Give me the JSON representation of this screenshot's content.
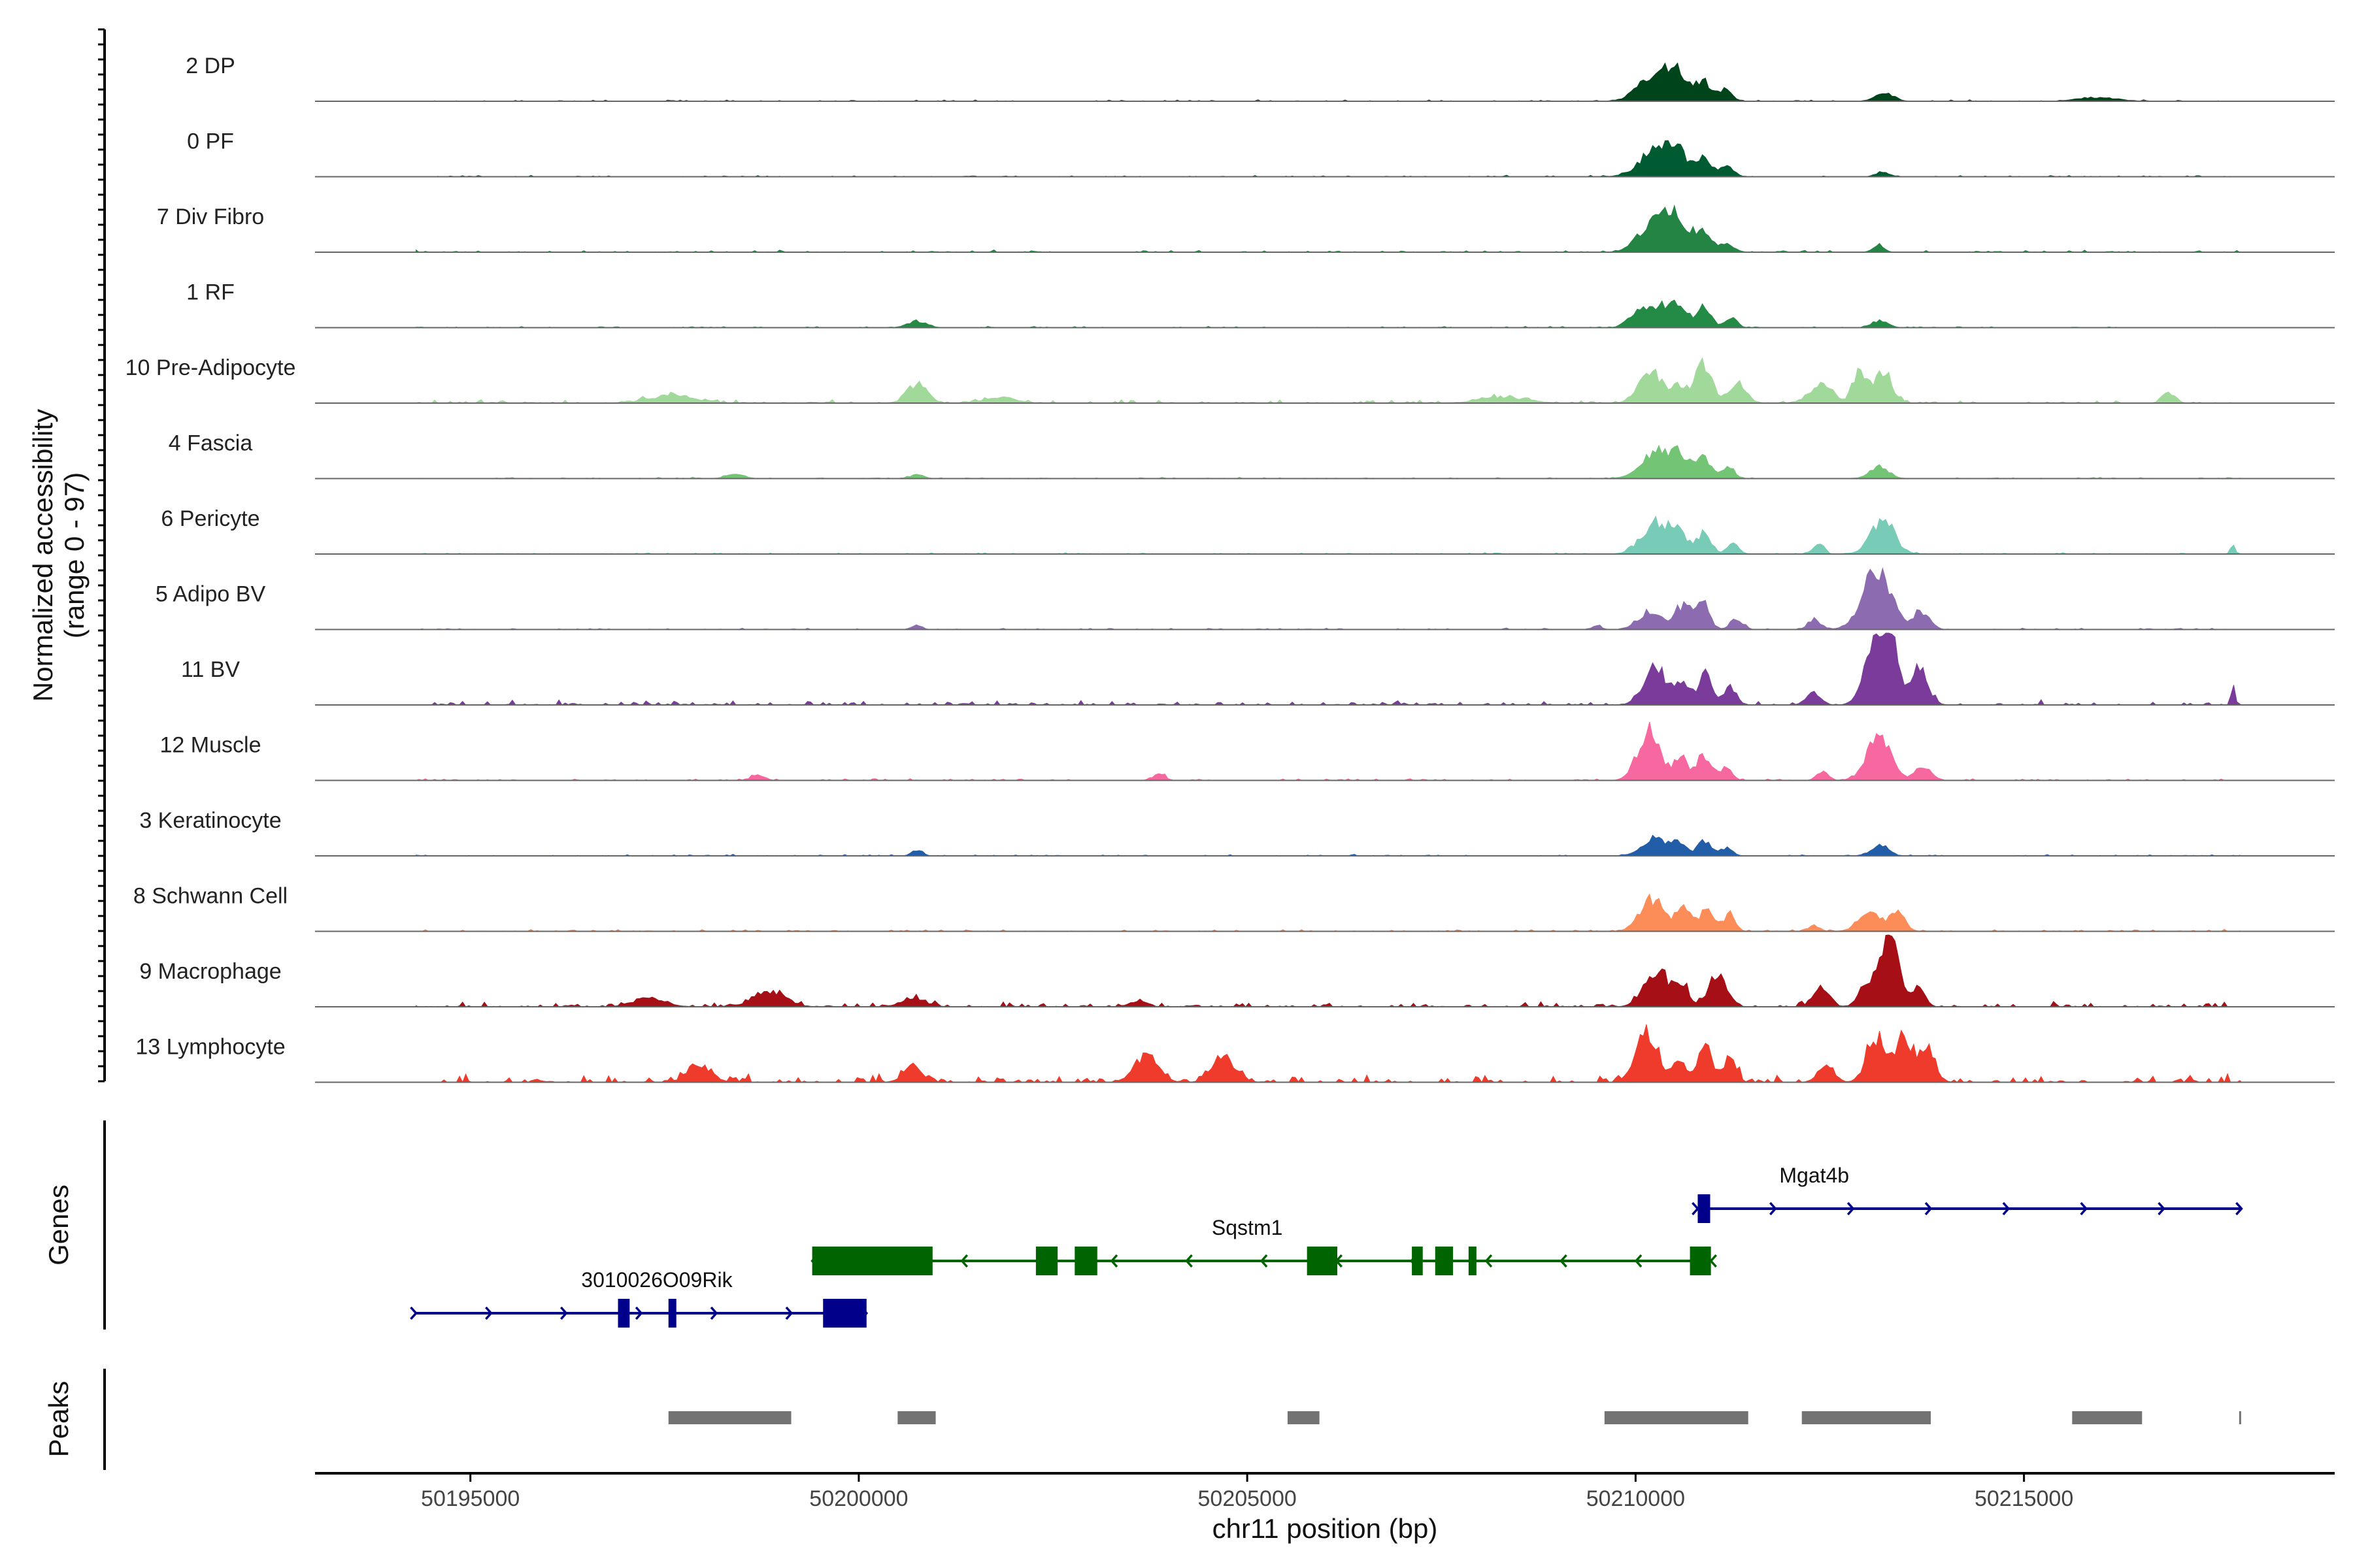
{
  "chart_data": {
    "type": "area",
    "title": "",
    "coverage": {
      "ylabel": "Normalized accessibility\n(range 0 - 97)",
      "ylim": [
        0,
        97
      ],
      "tracks": [
        {
          "name": "2 DP",
          "color": "#00441b",
          "peaks": [
            [
              50210300,
              220,
              40
            ],
            [
              50210550,
              120,
              20
            ],
            [
              50210870,
              100,
              27
            ],
            [
              50211150,
              90,
              14
            ],
            [
              50213200,
              120,
              11
            ],
            [
              50215950,
              250,
              5
            ]
          ],
          "noise": 2
        },
        {
          "name": "0 PF",
          "color": "#005a32",
          "peaks": [
            [
              50210300,
              220,
              38
            ],
            [
              50210550,
              110,
              20
            ],
            [
              50210880,
              90,
              27
            ],
            [
              50211180,
              80,
              15
            ],
            [
              50213170,
              80,
              6
            ]
          ],
          "noise": 2
        },
        {
          "name": "7 Div Fibro",
          "color": "#238443",
          "peaks": [
            [
              50210280,
              200,
              48
            ],
            [
              50210550,
              120,
              32
            ],
            [
              50210870,
              110,
              32
            ],
            [
              50211180,
              80,
              12
            ],
            [
              50213130,
              70,
              9
            ]
          ],
          "noise": 3
        },
        {
          "name": "1 RF",
          "color": "#238b45",
          "peaks": [
            [
              50200750,
              120,
              9
            ],
            [
              50209990,
              100,
              12
            ],
            [
              50210300,
              200,
              30
            ],
            [
              50210590,
              90,
              22
            ],
            [
              50210890,
              90,
              28
            ],
            [
              50211230,
              70,
              15
            ],
            [
              50213150,
              100,
              10
            ]
          ],
          "noise": 2
        },
        {
          "name": "10 Pre-Adipocyte",
          "color": "#a1d99b",
          "peaks": [
            [
              50200750,
              130,
              25
            ],
            [
              50210190,
              150,
              45
            ],
            [
              50210570,
              90,
              24
            ],
            [
              50210880,
              100,
              55
            ],
            [
              50211300,
              120,
              25
            ],
            [
              50212390,
              150,
              25
            ],
            [
              50212880,
              80,
              45
            ],
            [
              50213180,
              120,
              40
            ],
            [
              50216870,
              80,
              15
            ],
            [
              50201800,
              200,
              8
            ],
            [
              50197600,
              300,
              10
            ],
            [
              50208300,
              300,
              8
            ]
          ],
          "noise": 5
        },
        {
          "name": "4 Fascia",
          "color": "#74c476",
          "peaks": [
            [
              50210290,
              200,
              36
            ],
            [
              50210570,
              100,
              22
            ],
            [
              50210870,
              110,
              28
            ],
            [
              50211190,
              80,
              15
            ],
            [
              50213140,
              120,
              16
            ],
            [
              50200750,
              80,
              6
            ],
            [
              50198400,
              120,
              5
            ]
          ],
          "noise": 2
        },
        {
          "name": "6 Pericyte",
          "color": "#78cbb7",
          "peaks": [
            [
              50210270,
              180,
              45
            ],
            [
              50210580,
              90,
              24
            ],
            [
              50210880,
              90,
              28
            ],
            [
              50211250,
              70,
              15
            ],
            [
              50212350,
              70,
              14
            ],
            [
              50213180,
              150,
              46
            ],
            [
              50217690,
              30,
              12
            ]
          ],
          "noise": 2
        },
        {
          "name": "5 Adipo BV",
          "color": "#8c6bb1",
          "peaks": [
            [
              50210190,
              150,
              24
            ],
            [
              50210600,
              100,
              30
            ],
            [
              50210850,
              90,
              38
            ],
            [
              50211300,
              80,
              15
            ],
            [
              50212300,
              80,
              14
            ],
            [
              50213100,
              180,
              80
            ],
            [
              50213680,
              100,
              24
            ],
            [
              50200750,
              60,
              6
            ],
            [
              50209500,
              60,
              5
            ]
          ],
          "noise": 2
        },
        {
          "name": "11 BV",
          "color": "#7a3b9b",
          "peaks": [
            [
              50210250,
              150,
              50
            ],
            [
              50210600,
              90,
              30
            ],
            [
              50210900,
              90,
              44
            ],
            [
              50211220,
              80,
              22
            ],
            [
              50212290,
              90,
              18
            ],
            [
              50213090,
              140,
              72
            ],
            [
              50213260,
              90,
              88
            ],
            [
              50213630,
              120,
              50
            ],
            [
              50217690,
              25,
              28
            ]
          ],
          "noise": 7
        },
        {
          "name": "12 Muscle",
          "color": "#f768a1",
          "peaks": [
            [
              50210170,
              140,
              68
            ],
            [
              50210580,
              90,
              30
            ],
            [
              50210880,
              90,
              34
            ],
            [
              50211160,
              80,
              16
            ],
            [
              50212400,
              70,
              12
            ],
            [
              50213130,
              150,
              64
            ],
            [
              50213700,
              100,
              20
            ],
            [
              50203870,
              70,
              10
            ],
            [
              50198700,
              80,
              8
            ]
          ],
          "noise": 3
        },
        {
          "name": "3 Keratinocyte",
          "color": "#225ea8",
          "peaks": [
            [
              50200750,
              70,
              8
            ],
            [
              50210250,
              160,
              24
            ],
            [
              50210570,
              90,
              16
            ],
            [
              50210890,
              90,
              20
            ],
            [
              50211180,
              70,
              12
            ],
            [
              50213150,
              110,
              12
            ]
          ],
          "noise": 2
        },
        {
          "name": "8 Schwann Cell",
          "color": "#fc8d59",
          "peaks": [
            [
              50210200,
              150,
              42
            ],
            [
              50210620,
              100,
              32
            ],
            [
              50210920,
              90,
              28
            ],
            [
              50211210,
              70,
              24
            ],
            [
              50213000,
              140,
              24
            ],
            [
              50213360,
              100,
              25
            ],
            [
              50212300,
              70,
              8
            ]
          ],
          "noise": 3
        },
        {
          "name": "9 Macrophage",
          "color": "#a50f15",
          "peaks": [
            [
              50198850,
              200,
              22
            ],
            [
              50197300,
              200,
              12
            ],
            [
              50200700,
              150,
              13
            ],
            [
              50210280,
              160,
              48
            ],
            [
              50210600,
              80,
              28
            ],
            [
              50211050,
              120,
              40
            ],
            [
              50212390,
              100,
              30
            ],
            [
              50212950,
              90,
              26
            ],
            [
              50213260,
              130,
              88
            ],
            [
              50213650,
              80,
              22
            ],
            [
              50203600,
              100,
              8
            ]
          ],
          "noise": 8
        },
        {
          "name": "13 Lymphocyte",
          "color": "#ef3b2c",
          "peaks": [
            [
              50210150,
              140,
              65
            ],
            [
              50210570,
              90,
              30
            ],
            [
              50210880,
              90,
              46
            ],
            [
              50211210,
              80,
              34
            ],
            [
              50212450,
              100,
              25
            ],
            [
              50213100,
              120,
              60
            ],
            [
              50213460,
              110,
              62
            ],
            [
              50213760,
              100,
              40
            ],
            [
              50203700,
              150,
              36
            ],
            [
              50204700,
              150,
              30
            ],
            [
              50197950,
              150,
              24
            ],
            [
              50200700,
              120,
              22
            ]
          ],
          "noise": 12
        }
      ]
    },
    "genes": {
      "ylabel": "Genes",
      "items": [
        {
          "name": "Mgat4b",
          "start": 50210800,
          "end": 50217800,
          "strand": "+",
          "color": "#00008b",
          "exons": [
            [
              50210800,
              50210960
            ]
          ]
        },
        {
          "name": "Sqstm1",
          "start": 50199400,
          "end": 50210970,
          "strand": "-",
          "color": "#006400",
          "exons": [
            [
              50199400,
              50200950
            ],
            [
              50202280,
              50202560
            ],
            [
              50202780,
              50203070
            ],
            [
              50205770,
              50206160
            ],
            [
              50207120,
              50207260
            ],
            [
              50207420,
              50207650
            ],
            [
              50207850,
              50207930
            ],
            [
              50210700,
              50210970
            ]
          ]
        },
        {
          "name": "3010026O09Rik",
          "start": 50194300,
          "end": 50200100,
          "strand": "+",
          "color": "#00008b",
          "exons": [
            [
              50196900,
              50197050
            ],
            [
              50197550,
              50197620
            ],
            [
              50199540,
              50200100
            ]
          ]
        }
      ]
    },
    "peaks": {
      "ylabel": "Peaks",
      "regions": [
        [
          50197550,
          50199130
        ],
        [
          50200500,
          50200990
        ],
        [
          50205520,
          50205930
        ],
        [
          50209600,
          50211450
        ],
        [
          50212140,
          50213800
        ],
        [
          50215620,
          50216520
        ],
        [
          50217770,
          50217790
        ]
      ]
    },
    "x": {
      "label": "chr11 position (bp)",
      "range": [
        50193000,
        50219000
      ],
      "ticks": [
        50195000,
        50200000,
        50205000,
        50210000,
        50215000
      ],
      "tick_labels": [
        "50195000",
        "50200000",
        "50205000",
        "50210000",
        "50215000"
      ]
    }
  }
}
